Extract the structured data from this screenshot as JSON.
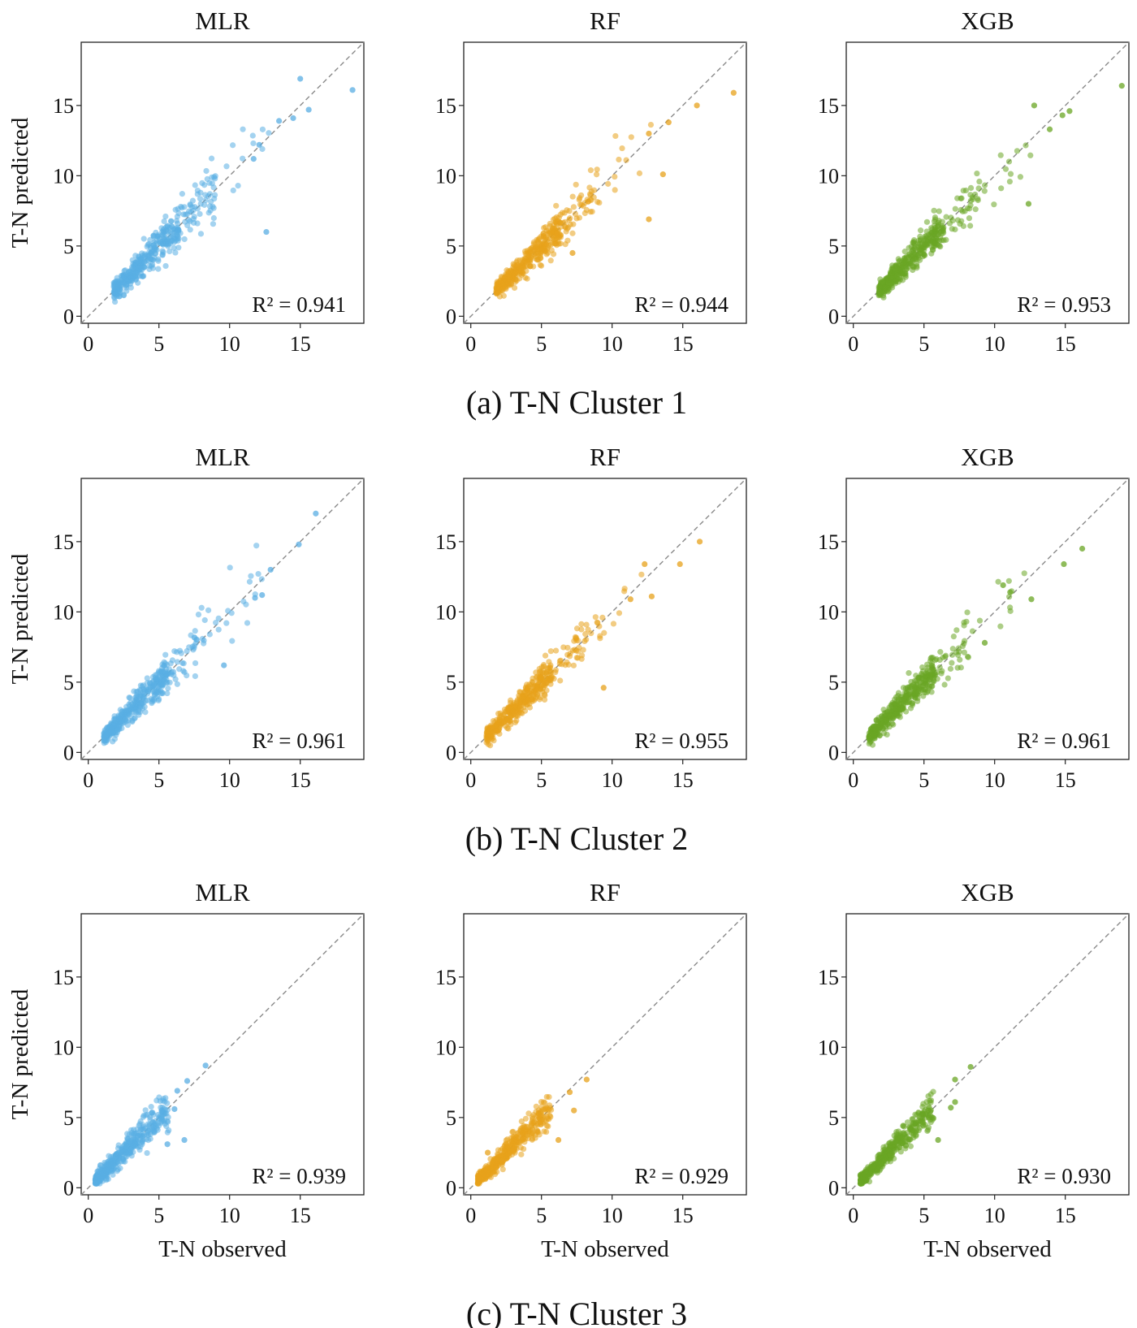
{
  "figure": {
    "colors": {
      "MLR": "#5aaee3",
      "RF": "#e7a21b",
      "XGB": "#6aa624",
      "diag": "#8a8a8a"
    }
  },
  "chart_data": [
    {
      "type": "scatter",
      "caption": "(a) T-N Cluster 1",
      "xlabel": "T-N observed",
      "ylabel": "T-N predicted",
      "xlim": [
        -0.5,
        19.5
      ],
      "ylim": [
        -0.5,
        19.5
      ],
      "xticks": [
        0,
        5,
        10,
        15
      ],
      "yticks": [
        0,
        5,
        10,
        15
      ],
      "panels": [
        {
          "model": "MLR",
          "title": "MLR",
          "r2_label": "R² = 0.941",
          "outliers": [
            [
              18.7,
              16.1
            ],
            [
              15.0,
              16.9
            ],
            [
              13.5,
              13.9
            ],
            [
              14.5,
              14.1
            ],
            [
              12.6,
              6.0
            ],
            [
              11.7,
              11.2
            ],
            [
              12.1,
              12.2
            ],
            [
              15.6,
              14.7
            ]
          ]
        },
        {
          "model": "RF",
          "title": "RF",
          "r2_label": "R² = 0.944",
          "outliers": [
            [
              18.6,
              15.9
            ],
            [
              12.6,
              6.9
            ],
            [
              13.6,
              10.1
            ],
            [
              7.2,
              4.5
            ],
            [
              16.0,
              15.0
            ],
            [
              12.6,
              13.0
            ],
            [
              14.0,
              13.8
            ]
          ]
        },
        {
          "model": "XGB",
          "title": "XGB",
          "r2_label": "R² = 0.953",
          "outliers": [
            [
              19.0,
              16.4
            ],
            [
              12.4,
              8.0
            ],
            [
              15.3,
              14.6
            ],
            [
              12.8,
              15.0
            ],
            [
              14.8,
              14.3
            ],
            [
              13.9,
              13.3
            ]
          ]
        }
      ]
    },
    {
      "type": "scatter",
      "caption": "(b) T-N Cluster 2",
      "xlabel": "T-N observed",
      "ylabel": "T-N predicted",
      "xlim": [
        -0.5,
        19.5
      ],
      "ylim": [
        -0.5,
        19.5
      ],
      "xticks": [
        0,
        5,
        10,
        15
      ],
      "yticks": [
        0,
        5,
        10,
        15
      ],
      "panels": [
        {
          "model": "MLR",
          "title": "MLR",
          "r2_label": "R² = 0.961",
          "outliers": [
            [
              16.1,
              17.0
            ],
            [
              14.9,
              14.8
            ],
            [
              9.6,
              6.2
            ],
            [
              12.3,
              11.2
            ],
            [
              12.9,
              13.0
            ],
            [
              11.8,
              11.0
            ]
          ]
        },
        {
          "model": "RF",
          "title": "RF",
          "r2_label": "R² = 0.955",
          "outliers": [
            [
              16.2,
              15.0
            ],
            [
              14.8,
              13.4
            ],
            [
              9.4,
              4.6
            ],
            [
              12.8,
              11.1
            ],
            [
              12.3,
              13.4
            ],
            [
              11.3,
              10.9
            ]
          ]
        },
        {
          "model": "XGB",
          "title": "XGB",
          "r2_label": "R² = 0.961",
          "outliers": [
            [
              16.2,
              14.5
            ],
            [
              14.9,
              13.4
            ],
            [
              12.6,
              10.9
            ],
            [
              11.1,
              11.4
            ],
            [
              10.6,
              11.9
            ],
            [
              9.3,
              7.8
            ]
          ]
        }
      ]
    },
    {
      "type": "scatter",
      "caption": "(c) T-N Cluster 3",
      "xlabel": "T-N observed",
      "ylabel": "T-N predicted",
      "xlim": [
        -0.5,
        19.5
      ],
      "ylim": [
        -0.5,
        19.5
      ],
      "xticks": [
        0,
        5,
        10,
        15
      ],
      "yticks": [
        0,
        5,
        10,
        15
      ],
      "panels": [
        {
          "model": "MLR",
          "title": "MLR",
          "r2_label": "R² = 0.939",
          "outliers": [
            [
              8.3,
              8.7
            ],
            [
              7.0,
              7.6
            ],
            [
              6.3,
              6.9
            ],
            [
              6.8,
              3.4
            ],
            [
              5.6,
              3.1
            ],
            [
              6.1,
              5.6
            ]
          ]
        },
        {
          "model": "RF",
          "title": "RF",
          "r2_label": "R² = 0.929",
          "outliers": [
            [
              8.2,
              7.7
            ],
            [
              7.0,
              6.8
            ],
            [
              7.3,
              5.5
            ],
            [
              6.2,
              3.4
            ],
            [
              4.8,
              5.3
            ],
            [
              1.2,
              2.5
            ]
          ]
        },
        {
          "model": "XGB",
          "title": "XGB",
          "r2_label": "R² = 0.930",
          "outliers": [
            [
              8.3,
              8.6
            ],
            [
              7.2,
              7.7
            ],
            [
              7.2,
              6.1
            ],
            [
              6.9,
              5.7
            ],
            [
              6.0,
              3.4
            ],
            [
              5.3,
              5.5
            ]
          ]
        }
      ]
    }
  ]
}
